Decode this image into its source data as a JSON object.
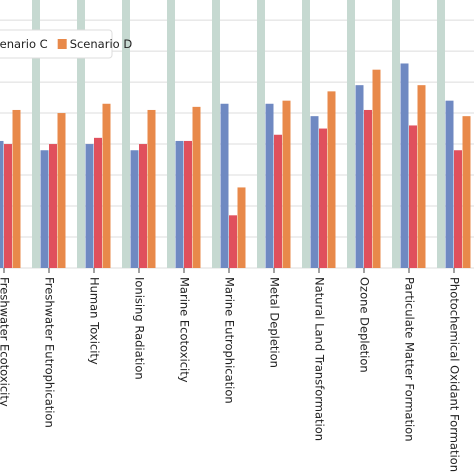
{
  "chart_data": {
    "type": "bar",
    "categories": [
      "Freshwater Ecotoxicity",
      "Freshwater Eutrophication",
      "Human Toxicity",
      "Ionising Radiation",
      "Marine Ecotoxicity",
      "Marine Eutrophication",
      "Metal Depletion",
      "Natural Land Transformation",
      "Ozone Depletion",
      "Particulate Matter Formation",
      "Photochemical Oxidant Formation"
    ],
    "series": [
      {
        "color": "#c6d9d1",
        "values": [
          90,
          90,
          90,
          90,
          90,
          90,
          90,
          90,
          90,
          90,
          90
        ]
      },
      {
        "color": "#6f89c2",
        "values": [
          41,
          38,
          40,
          38,
          41,
          53,
          53,
          49,
          59,
          66,
          54
        ]
      },
      {
        "name": "Scenario C",
        "color": "#e0505d",
        "values": [
          40,
          40,
          42,
          40,
          41,
          17,
          43,
          45,
          51,
          46,
          38
        ]
      },
      {
        "name": "Scenario D",
        "color": "#e8894a",
        "values": [
          51,
          50,
          53,
          51,
          52,
          26,
          54,
          57,
          64,
          59,
          49
        ]
      }
    ],
    "ylim": [
      0,
      86
    ],
    "yticks": [
      0,
      10,
      20,
      30,
      40,
      50,
      60,
      70,
      80
    ],
    "grid": true,
    "legend": "top-left"
  }
}
